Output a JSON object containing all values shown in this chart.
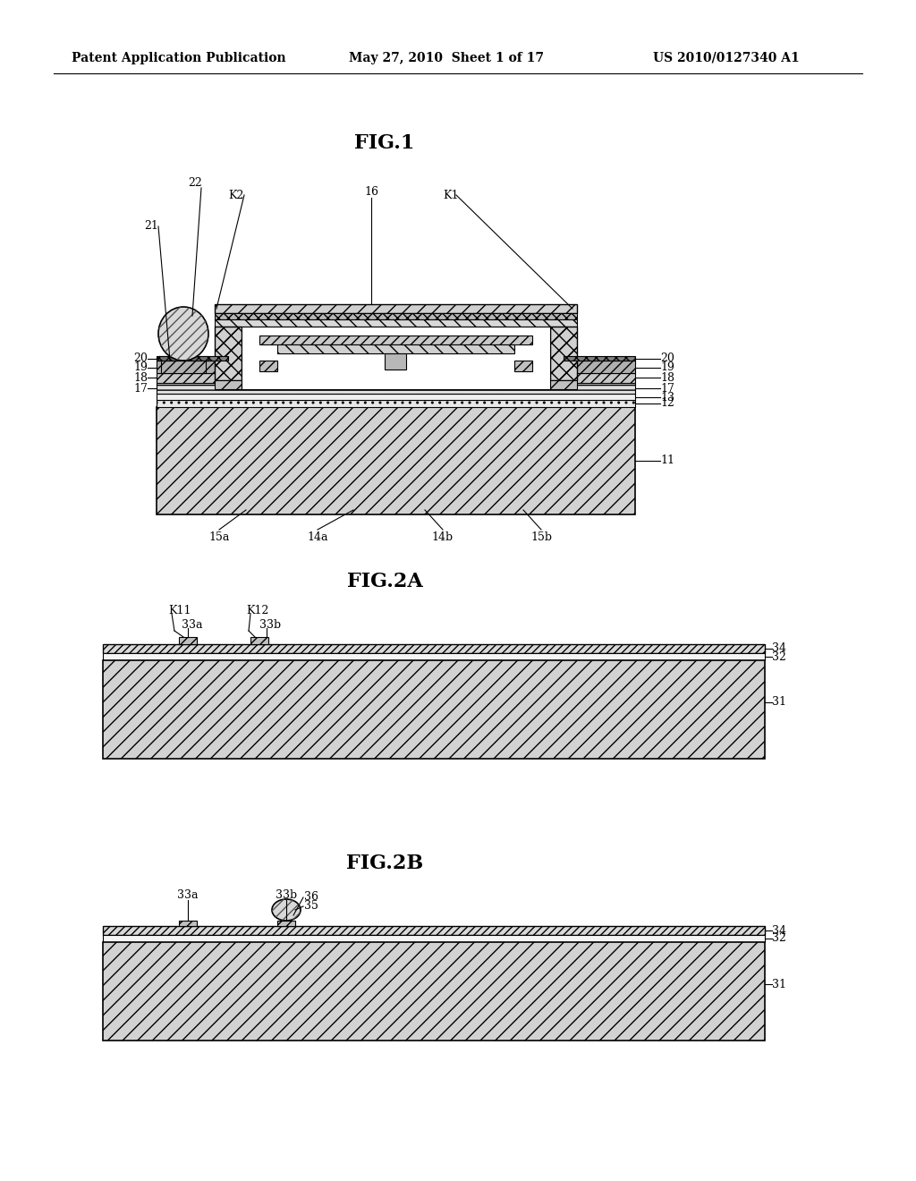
{
  "header_left": "Patent Application Publication",
  "header_mid": "May 27, 2010  Sheet 1 of 17",
  "header_right": "US 2010/0127340 A1",
  "fig1_title": "FIG.1",
  "fig2a_title": "FIG.2A",
  "fig2b_title": "FIG.2B",
  "bg_color": "#ffffff",
  "lc": "#000000",
  "sub_fc": "#d4d4d4",
  "layer_fc_light": "#e8e8e8",
  "layer_fc_med": "#c0c0c0",
  "layer_fc_dark": "#a0a0a0",
  "cap_fc": "#d8d8d8",
  "pad_fc": "#b8b8b8",
  "ball_fc": "#d0d0d0"
}
